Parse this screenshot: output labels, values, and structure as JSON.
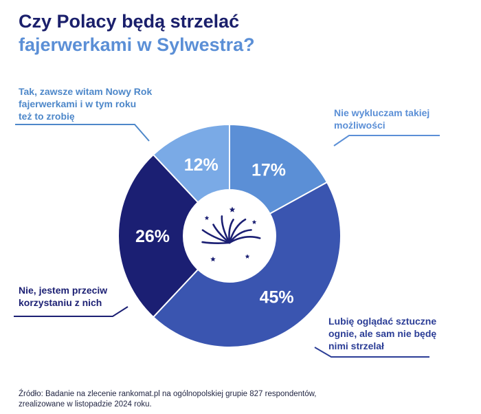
{
  "title": {
    "line1": "Czy Polacy będą strzelać",
    "line2": "fajerwerkami w Sylwestra?"
  },
  "chart_data": {
    "type": "pie",
    "variant": "donut",
    "title": "Czy Polacy będą strzelać fajerwerkami w Sylwestra?",
    "slices": [
      {
        "label": "Nie wykluczam takiej możliwości",
        "value": 17,
        "value_label": "17%",
        "color": "#5b8fd6",
        "callout_color": "#5b8fd6"
      },
      {
        "label": "Lubię oglądać sztuczne ognie, ale sam nie będę nimi strzelał",
        "value": 45,
        "value_label": "45%",
        "color": "#3a55b0",
        "callout_color": "#2b3d96"
      },
      {
        "label": "Nie, jestem przeciw korzystaniu z nich",
        "value": 26,
        "value_label": "26%",
        "color": "#1b1f73",
        "callout_color": "#1b1f73"
      },
      {
        "label": "Tak, zawsze witam Nowy Rok fajerwerkami i w tym roku też to zrobię",
        "value": 12,
        "value_label": "12%",
        "color": "#7aaae6",
        "callout_color": "#4d87c9"
      }
    ],
    "center_icon": "fireworks-icon"
  },
  "callouts": [
    "Nie wykluczam takiej\nmożliwości",
    "Lubię oglądać sztuczne\nognie, ale sam nie będę\nnimi strzelał",
    "Nie, jestem przeciw\nkorzystaniu z nich",
    "Tak, zawsze witam Nowy Rok\nfajerwerkami i w tym roku\nteż to zrobię"
  ],
  "source": "Źródło: Badanie na zlecenie rankomat.pl na ogólnopolskiej grupie 827 respondentów,\nzrealizowane w listopadzie 2024 roku."
}
